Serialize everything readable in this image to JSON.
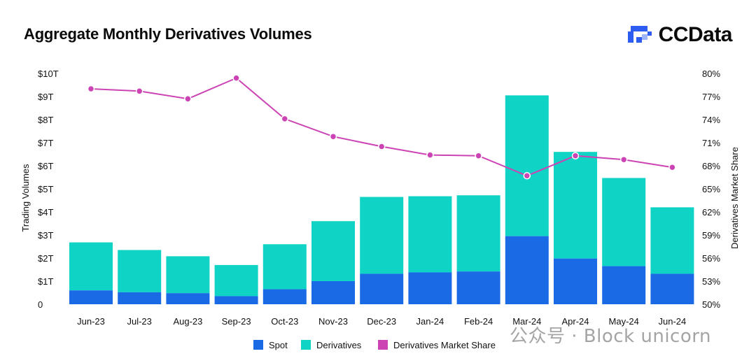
{
  "header": {
    "title": "Aggregate Monthly Derivatives Volumes",
    "brand": "CCData"
  },
  "watermark": {
    "text": "公众号 · Block unicorn"
  },
  "colors": {
    "spot": "#1a6ae6",
    "derivatives": "#0fd3c5",
    "share": "#cc44b4",
    "brand_blue": "#2c5cf0"
  },
  "chart_data": {
    "type": "bar",
    "stacked": true,
    "title": "Aggregate Monthly Derivatives Volumes",
    "categories": [
      "Jun-23",
      "Jul-23",
      "Aug-23",
      "Sep-23",
      "Oct-23",
      "Nov-23",
      "Dec-23",
      "Jan-24",
      "Feb-24",
      "Mar-24",
      "Apr-24",
      "May-24",
      "Jun-24"
    ],
    "series": [
      {
        "name": "Spot",
        "kind": "bar",
        "axis": "left",
        "values": [
          0.6,
          0.52,
          0.48,
          0.35,
          0.65,
          1.0,
          1.32,
          1.38,
          1.42,
          2.95,
          1.98,
          1.65,
          1.32
        ]
      },
      {
        "name": "Derivatives",
        "kind": "bar",
        "axis": "left",
        "values": [
          2.08,
          1.83,
          1.6,
          1.35,
          1.95,
          2.6,
          3.33,
          3.3,
          3.3,
          6.1,
          4.62,
          3.82,
          2.88
        ]
      },
      {
        "name": "Derivatives Market Share",
        "kind": "line",
        "axis": "right",
        "values": [
          78.0,
          77.7,
          76.7,
          79.4,
          74.1,
          71.8,
          70.5,
          69.4,
          69.3,
          66.7,
          69.3,
          68.8,
          67.8
        ]
      }
    ],
    "ylabel": "Trading Volumes",
    "y2label": "Derivatives Market Share",
    "ylim": [
      0,
      10
    ],
    "y2lim": [
      50,
      80
    ],
    "yticks": [
      "0",
      "$1T",
      "$2T",
      "$3T",
      "$4T",
      "$5T",
      "$6T",
      "$7T",
      "$8T",
      "$9T",
      "$10T"
    ],
    "y2ticks": [
      "50%",
      "53%",
      "56%",
      "59%",
      "62%",
      "65%",
      "68%",
      "71%",
      "74%",
      "77%",
      "80%"
    ],
    "grid": false,
    "legend": {
      "position": "bottom-center",
      "entries": [
        "Spot",
        "Derivatives",
        "Derivatives Market Share"
      ]
    }
  }
}
